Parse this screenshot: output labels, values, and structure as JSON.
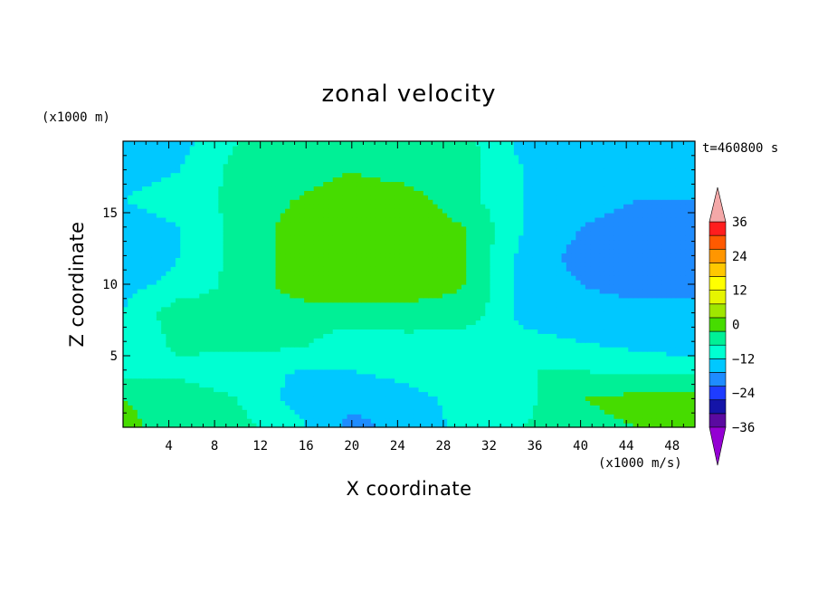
{
  "chart_data": {
    "type": "heatmap",
    "title": "zonal velocity",
    "xlabel": "X coordinate",
    "ylabel": "Z coordinate",
    "x_unit": "(x1000 m/s)",
    "y_unit": "(x1000 m)",
    "time_label": "t=460800 s",
    "xlim": [
      0,
      50
    ],
    "ylim": [
      0,
      20
    ],
    "x_ticks": [
      4,
      8,
      12,
      16,
      20,
      24,
      28,
      32,
      36,
      40,
      44,
      48
    ],
    "y_ticks": [
      5,
      10,
      15
    ],
    "x_tick_labels": [
      "4",
      "8",
      "12",
      "16",
      "20",
      "24",
      "28",
      "32",
      "36",
      "40",
      "44",
      "48"
    ],
    "y_tick_labels": [
      "5",
      "10",
      "15"
    ],
    "x": [
      0,
      5,
      10,
      15,
      20,
      25,
      30,
      35,
      40,
      45,
      50
    ],
    "y": [
      0,
      2,
      4,
      6,
      8,
      10,
      12,
      14,
      16,
      18,
      20
    ],
    "z": [
      [
        8,
        2,
        2,
        -4,
        -14,
        -10,
        -4,
        0,
        4,
        6,
        10
      ],
      [
        6,
        4,
        0,
        -8,
        -10,
        -8,
        -4,
        -2,
        6,
        8,
        8
      ],
      [
        -2,
        -2,
        -4,
        -6,
        -6,
        -4,
        -2,
        0,
        0,
        -2,
        -2
      ],
      [
        -6,
        2,
        2,
        2,
        -4,
        -2,
        -4,
        -4,
        -6,
        -8,
        -10
      ],
      [
        -6,
        4,
        2,
        4,
        4,
        4,
        4,
        -8,
        -10,
        -10,
        -10
      ],
      [
        -8,
        -4,
        2,
        8,
        10,
        9,
        6,
        -8,
        -12,
        -14,
        -14
      ],
      [
        -12,
        -6,
        2,
        8,
        10,
        12,
        6,
        -8,
        -14,
        -14,
        -16
      ],
      [
        -8,
        -6,
        2,
        8,
        10,
        10,
        6,
        -6,
        -12,
        -14,
        -14
      ],
      [
        -6,
        -4,
        2,
        6,
        8,
        8,
        2,
        -6,
        -10,
        -12,
        -12
      ],
      [
        -8,
        -6,
        2,
        4,
        6,
        4,
        2,
        -6,
        -10,
        -10,
        -10
      ],
      [
        -10,
        -8,
        0,
        2,
        4,
        2,
        2,
        -8,
        -10,
        -10,
        -10
      ]
    ],
    "levels": [
      -36,
      -30,
      -24,
      -18,
      -12,
      -6,
      0,
      6,
      12,
      18,
      24,
      30,
      36
    ],
    "colorbar_tick_labels": [
      "36",
      "24",
      "12",
      "0",
      "−12",
      "−24",
      "−36"
    ],
    "colorbar_colors": [
      "#9400d3",
      "#5a0aa0",
      "#1414a8",
      "#1e3cff",
      "#1e8cff",
      "#00c8ff",
      "#00ffd2",
      "#00f096",
      "#46dc00",
      "#a0e600",
      "#e6f500",
      "#ffff00",
      "#ffc800",
      "#ff9600",
      "#ff5a00",
      "#ff1e1e",
      "#f4a8a8"
    ],
    "grid": false,
    "legend": "colorbar-right"
  }
}
